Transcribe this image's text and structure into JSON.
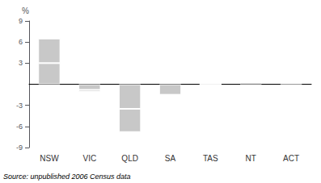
{
  "chart_data": {
    "type": "bar",
    "categories": [
      "NSW",
      "VIC",
      "QLD",
      "SA",
      "TAS",
      "NT",
      "ACT"
    ],
    "series": [
      {
        "color": "#c8c8c8",
        "values": [
          3.0,
          -0.8,
          -3.5,
          -1.5,
          -0.08,
          0.3,
          -0.15
        ]
      },
      {
        "color": "#c8c8c8",
        "values": [
          3.5,
          -0.3,
          -3.3,
          0.0,
          0.0,
          0.0,
          -0.05
        ]
      }
    ],
    "stacked": true,
    "ylabel": "%",
    "annotation": "Source: unpublished 2006 Census data",
    "ylim": [
      -9,
      9
    ],
    "yticks": [
      -9,
      -6,
      -3,
      3,
      6,
      9
    ],
    "grid": false
  }
}
